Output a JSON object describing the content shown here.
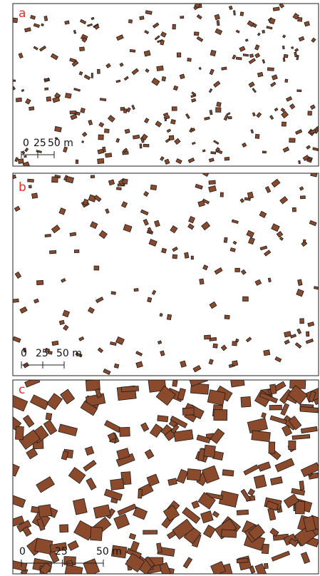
{
  "panels": [
    {
      "label": "a",
      "scale_labels": [
        "0",
        "25",
        "50 m"
      ]
    },
    {
      "label": "b",
      "scale_labels": [
        "0",
        "25",
        "50 m"
      ]
    },
    {
      "label": "c",
      "scale_labels": [
        "0",
        "25",
        "50 m"
      ]
    }
  ]
}
